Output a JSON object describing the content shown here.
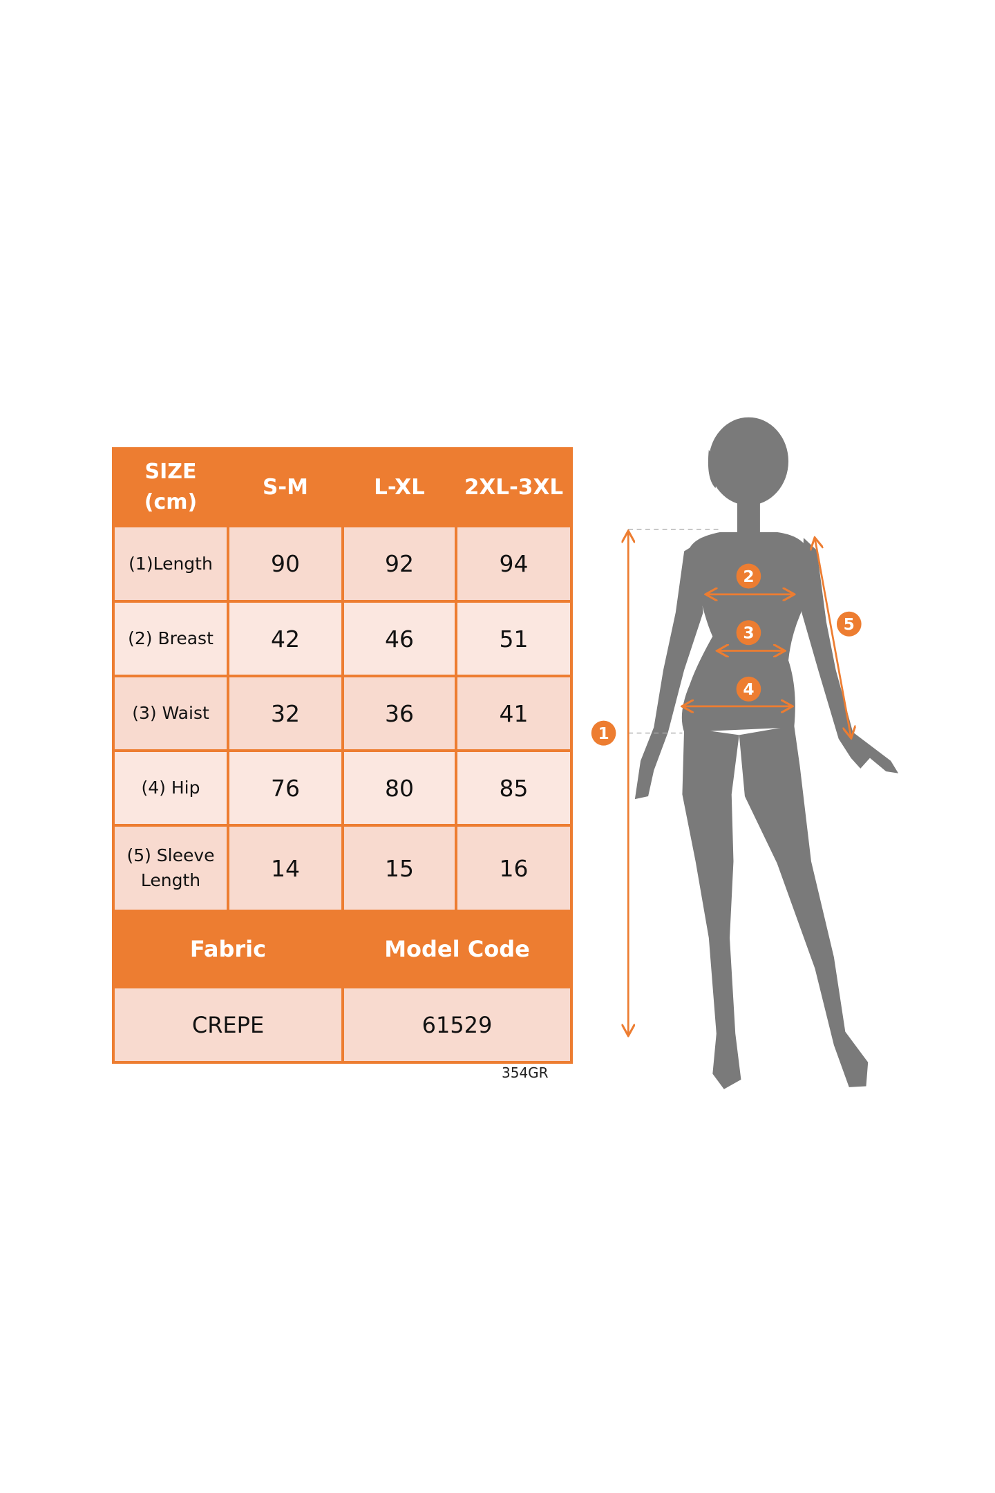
{
  "table": {
    "header": [
      "SIZE",
      "(cm)",
      "S-M",
      "L-XL",
      "2XL-3XL"
    ],
    "rows": [
      {
        "label": "(1)Length",
        "values": [
          "90",
          "92",
          "94"
        ]
      },
      {
        "label": "(2) Breast",
        "values": [
          "42",
          "46",
          "51"
        ]
      },
      {
        "label": "(3) Waist",
        "values": [
          "32",
          "36",
          "41"
        ]
      },
      {
        "label": "(4) Hip",
        "values": [
          "76",
          "80",
          "85"
        ]
      },
      {
        "label": "(5) Sleeve",
        "label2": "Length",
        "values": [
          "14",
          "15",
          "16"
        ]
      }
    ],
    "footer_headers": [
      "Fabric",
      "Model Code"
    ],
    "footer_values": [
      "CREPE",
      "61529"
    ]
  },
  "product_code": "354GR",
  "diagram": {
    "markers": [
      "1",
      "2",
      "3",
      "4",
      "5"
    ],
    "accent_color": "#ED7D31",
    "silhouette_color": "#7A7A7A"
  }
}
